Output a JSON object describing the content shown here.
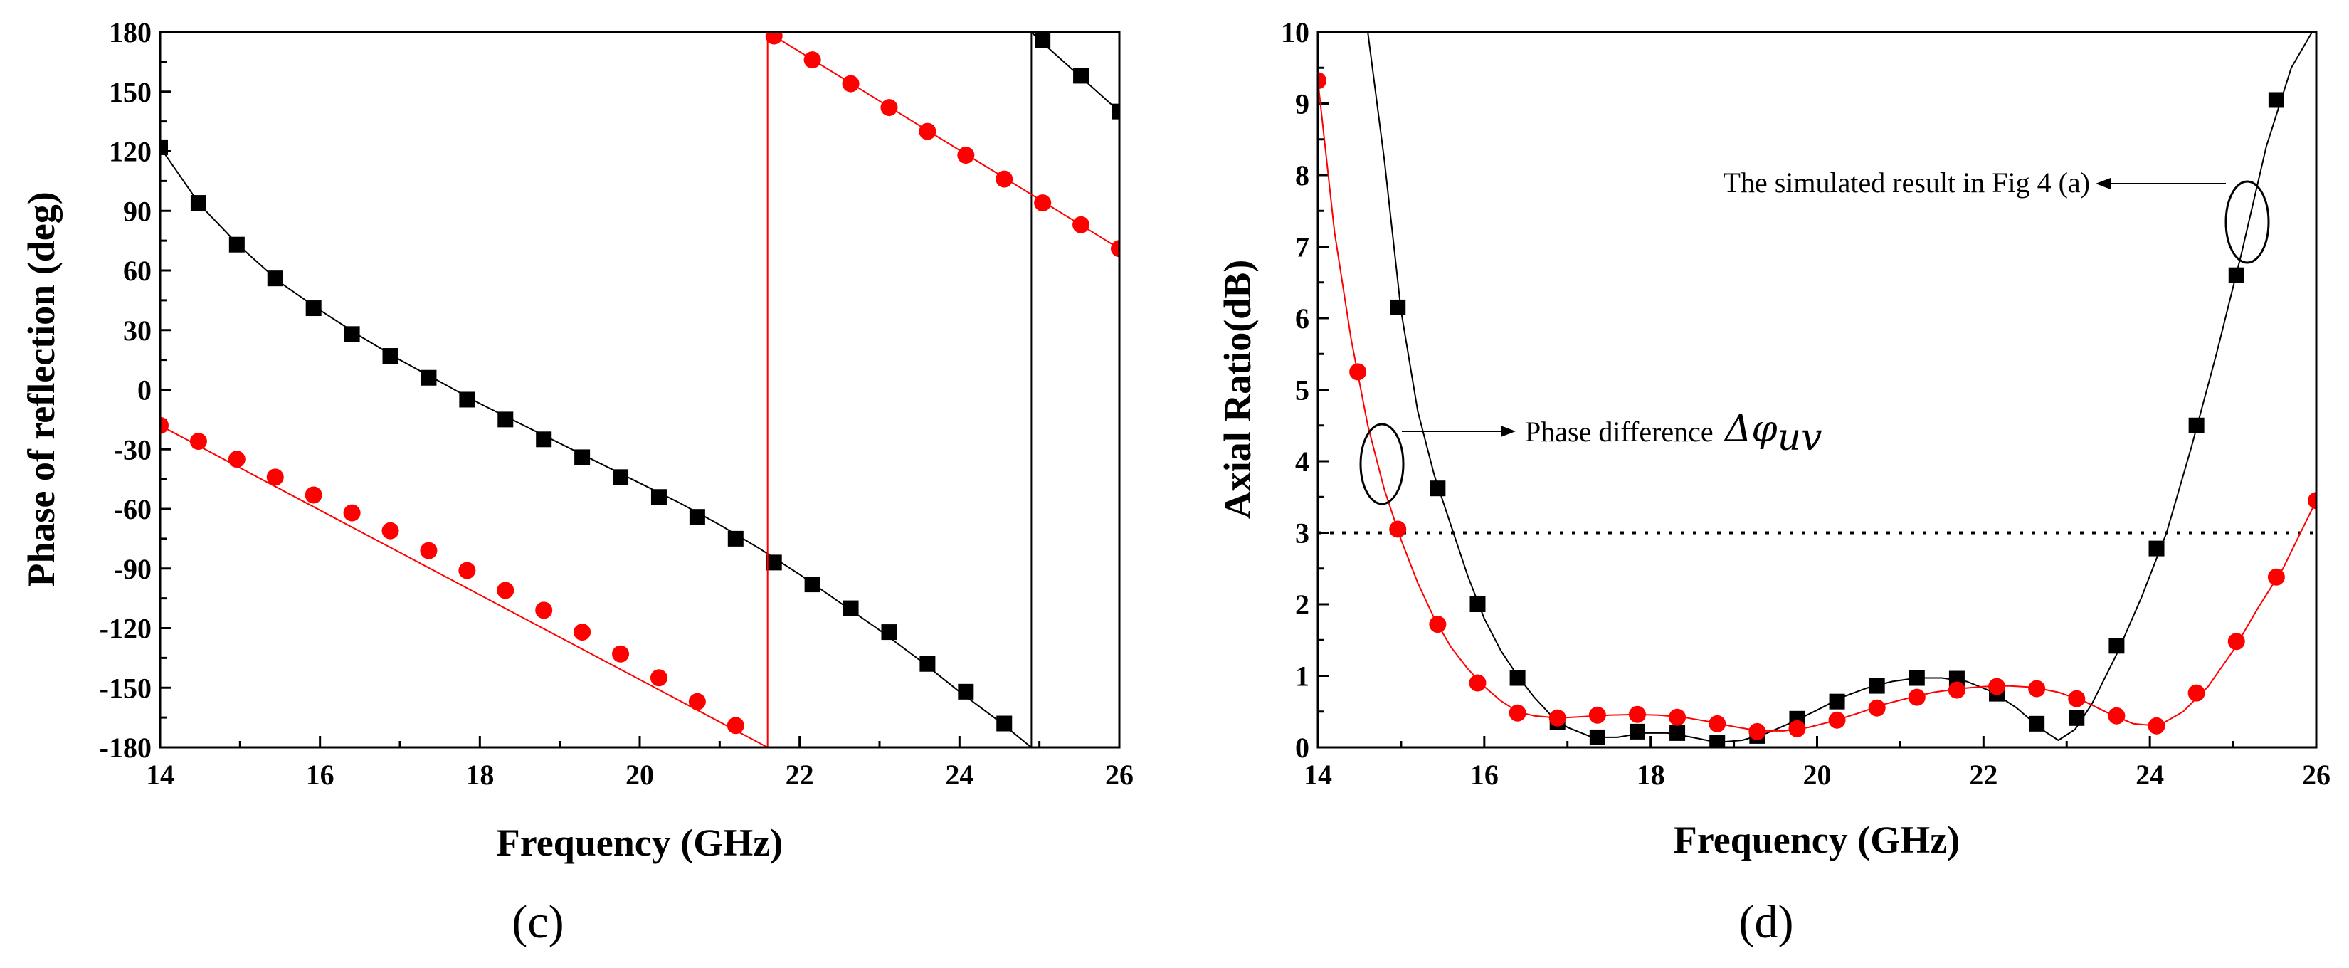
{
  "colors": {
    "black_series": "#000000",
    "red_series": "#ff0000",
    "dashed_line": "#000000"
  },
  "chart_data": [
    {
      "type": "line",
      "panel_label": "(c)",
      "xlabel": "Frequency (GHz)",
      "ylabel": "Phase of reflection (deg)",
      "xlim": [
        14,
        26
      ],
      "ylim": [
        -180,
        180
      ],
      "xticks": [
        14,
        16,
        18,
        20,
        22,
        24,
        26
      ],
      "xtick_labels": [
        "14",
        "16",
        "18",
        "20",
        "22",
        "24",
        "26"
      ],
      "yticks": [
        180,
        150,
        120,
        90,
        60,
        30,
        0,
        -30,
        -60,
        -90,
        -120,
        -150,
        -180
      ],
      "ytick_labels": [
        "180",
        "150",
        "120",
        "90",
        "60",
        "30",
        "0",
        "-30",
        "-60",
        "-90",
        "-120",
        "-150",
        "-180"
      ],
      "series": [
        {
          "name": "black",
          "color": "#000000",
          "marker": "square",
          "x": [
            14,
            14.48,
            14.96,
            15.44,
            15.92,
            16.4,
            16.88,
            17.36,
            17.84,
            18.32,
            18.8,
            19.28,
            19.76,
            20.24,
            20.72,
            21.2,
            21.68,
            22.16,
            22.64,
            23.12,
            23.6,
            24.08,
            24.56,
            25.04,
            25.52,
            26
          ],
          "values": [
            122,
            94,
            73,
            56,
            41,
            28,
            17,
            6,
            -5,
            -15,
            -25,
            -34,
            -44,
            -54,
            -64,
            -75,
            -87,
            -98,
            -110,
            -122,
            -138,
            -152,
            -168,
            176,
            158,
            140
          ],
          "line_x": [
            14,
            14.5,
            15,
            15.5,
            16,
            16.5,
            17,
            17.5,
            18,
            18.5,
            19,
            19.5,
            20,
            20.5,
            21,
            21.5,
            22,
            22.5,
            23,
            23.5,
            24,
            24.5,
            24.9,
            24.9,
            25,
            25.5,
            26
          ],
          "line_y": [
            122,
            93,
            72,
            54,
            40,
            27,
            15,
            4,
            -7,
            -17,
            -27,
            -37,
            -47,
            -57,
            -68,
            -80,
            -93,
            -107,
            -121,
            -136,
            -152,
            -167,
            -180,
            180,
            176,
            158,
            140
          ]
        },
        {
          "name": "red",
          "color": "#ff0000",
          "marker": "circle",
          "x": [
            14,
            14.48,
            14.96,
            15.44,
            15.92,
            16.4,
            16.88,
            17.36,
            17.84,
            18.32,
            18.8,
            19.28,
            19.76,
            20.24,
            20.72,
            21.2,
            21.68,
            22.16,
            22.64,
            23.12,
            23.6,
            24.08,
            24.56,
            25.04,
            25.52,
            26
          ],
          "values": [
            -18,
            -26,
            -35,
            -44,
            -53,
            -62,
            -71,
            -81,
            -91,
            -101,
            -111,
            -122,
            -133,
            -145,
            -157,
            -169,
            178,
            166,
            154,
            142,
            130,
            118,
            106,
            94,
            83,
            71
          ],
          "line_x": [
            14,
            21.6,
            21.6,
            26
          ],
          "line_y": [
            -18,
            -180,
            180,
            71
          ]
        }
      ]
    },
    {
      "type": "line",
      "panel_label": "(d)",
      "xlabel": "Frequency (GHz)",
      "ylabel": "Axial Ratio(dB)",
      "xlim": [
        14,
        26
      ],
      "ylim": [
        0,
        10
      ],
      "xticks": [
        14,
        16,
        18,
        20,
        22,
        24,
        26
      ],
      "xtick_labels": [
        "14",
        "16",
        "18",
        "20",
        "22",
        "24",
        "26"
      ],
      "yticks": [
        0,
        1,
        2,
        3,
        4,
        5,
        6,
        7,
        8,
        9,
        10
      ],
      "ytick_labels": [
        "0",
        "1",
        "2",
        "3",
        "4",
        "5",
        "6",
        "7",
        "8",
        "9",
        "10"
      ],
      "reference_line": {
        "y": 3,
        "style": "dotted"
      },
      "annotations": [
        {
          "text": "The simulated result in Fig 4 (a)",
          "points_to": "black"
        },
        {
          "text": "Phase difference ",
          "math": "Δφ",
          "math_sub": "uv",
          "points_to": "red"
        }
      ],
      "series": [
        {
          "name": "black",
          "color": "#000000",
          "marker": "square",
          "x": [
            14.96,
            15.44,
            15.92,
            16.4,
            16.88,
            17.36,
            17.84,
            18.32,
            18.8,
            19.28,
            19.76,
            20.24,
            20.72,
            21.2,
            21.68,
            22.16,
            22.64,
            23.12,
            23.6,
            24.08,
            24.56,
            25.04,
            25.52
          ],
          "values": [
            6.15,
            3.62,
            2.0,
            0.97,
            0.35,
            0.14,
            0.22,
            0.2,
            0.07,
            0.16,
            0.4,
            0.64,
            0.86,
            0.97,
            0.96,
            0.75,
            0.33,
            0.41,
            1.42,
            2.78,
            4.5,
            6.6,
            9.05
          ],
          "line_x": [
            14.6,
            14.8,
            15.0,
            15.2,
            15.4,
            15.6,
            15.8,
            16.0,
            16.2,
            16.4,
            16.6,
            16.8,
            17.0,
            17.3,
            17.6,
            17.9,
            18.2,
            18.5,
            18.8,
            19.1,
            19.4,
            19.7,
            20.0,
            20.3,
            20.6,
            20.9,
            21.2,
            21.5,
            21.8,
            22.1,
            22.4,
            22.7,
            22.9,
            23.1,
            23.3,
            23.6,
            23.9,
            24.2,
            24.5,
            24.8,
            25.1,
            25.4,
            25.7,
            25.95
          ],
          "line_y": [
            10.0,
            8.2,
            6.1,
            4.7,
            3.8,
            3.1,
            2.4,
            1.8,
            1.35,
            1.0,
            0.7,
            0.45,
            0.28,
            0.14,
            0.14,
            0.2,
            0.2,
            0.14,
            0.07,
            0.1,
            0.2,
            0.35,
            0.52,
            0.7,
            0.83,
            0.92,
            0.97,
            0.97,
            0.92,
            0.78,
            0.55,
            0.25,
            0.1,
            0.25,
            0.6,
            1.3,
            2.1,
            3.0,
            4.2,
            5.5,
            6.9,
            8.4,
            9.5,
            10.0
          ]
        },
        {
          "name": "red",
          "color": "#ff0000",
          "marker": "circle",
          "x": [
            14,
            14.48,
            14.96,
            15.44,
            15.92,
            16.4,
            16.88,
            17.36,
            17.84,
            18.32,
            18.8,
            19.28,
            19.76,
            20.24,
            20.72,
            21.2,
            21.68,
            22.16,
            22.64,
            23.12,
            23.6,
            24.08,
            24.56,
            25.04,
            25.52,
            26
          ],
          "values": [
            9.32,
            5.25,
            3.05,
            1.72,
            0.9,
            0.48,
            0.41,
            0.45,
            0.46,
            0.42,
            0.33,
            0.22,
            0.26,
            0.38,
            0.55,
            0.7,
            0.8,
            0.85,
            0.82,
            0.68,
            0.44,
            0.3,
            0.76,
            1.48,
            2.38,
            3.45
          ],
          "line_x": [
            14.0,
            14.2,
            14.4,
            14.6,
            14.8,
            15.0,
            15.2,
            15.4,
            15.6,
            15.8,
            16.0,
            16.2,
            16.4,
            16.6,
            16.9,
            17.2,
            17.5,
            17.8,
            18.1,
            18.4,
            18.7,
            19.0,
            19.3,
            19.6,
            19.9,
            20.2,
            20.5,
            20.8,
            21.1,
            21.4,
            21.7,
            22.0,
            22.3,
            22.6,
            22.9,
            23.2,
            23.5,
            23.8,
            24.1,
            24.4,
            24.7,
            25.0,
            25.3,
            25.6,
            26.0
          ],
          "line_y": [
            9.32,
            7.2,
            5.7,
            4.5,
            3.6,
            2.9,
            2.3,
            1.8,
            1.4,
            1.1,
            0.85,
            0.65,
            0.5,
            0.44,
            0.41,
            0.43,
            0.45,
            0.46,
            0.45,
            0.42,
            0.36,
            0.29,
            0.23,
            0.23,
            0.28,
            0.37,
            0.48,
            0.6,
            0.69,
            0.77,
            0.82,
            0.85,
            0.86,
            0.84,
            0.77,
            0.65,
            0.48,
            0.33,
            0.3,
            0.5,
            0.85,
            1.35,
            1.95,
            2.5,
            3.45
          ]
        }
      ]
    }
  ]
}
